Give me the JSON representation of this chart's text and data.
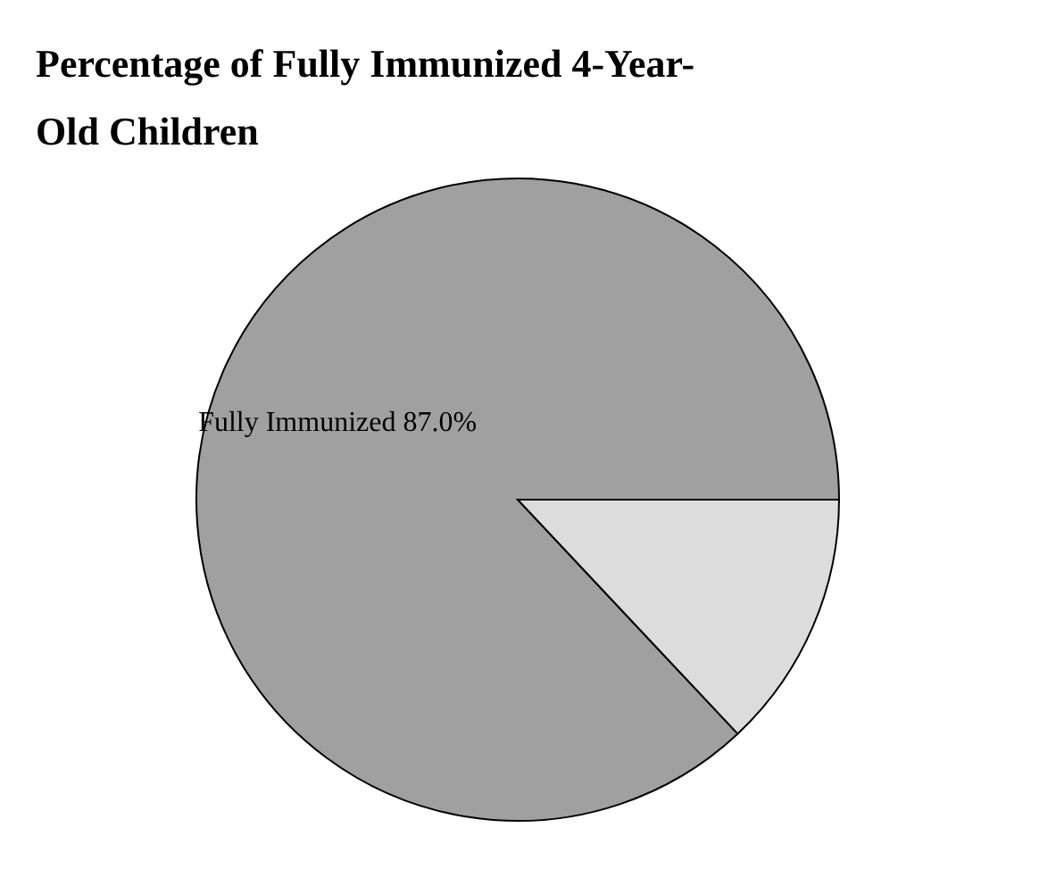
{
  "chart_data": {
    "type": "pie",
    "title": "Percentage of Fully Immunized 4-Year-Old Children",
    "categories": [
      "Fully Immunized",
      null
    ],
    "values": [
      87.0,
      13.0
    ],
    "value_labels": [
      "87.0%",
      null
    ],
    "colors": [
      "#a0a0a0",
      "#dcdcdc"
    ],
    "legend": false
  }
}
